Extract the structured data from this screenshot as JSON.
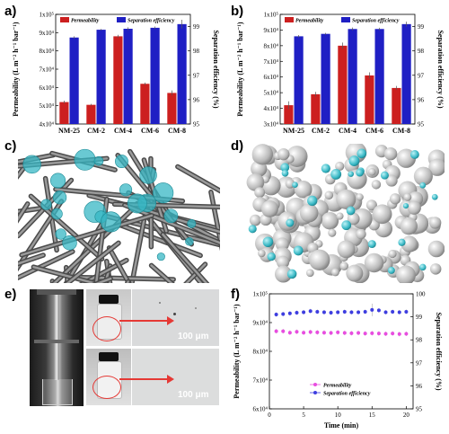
{
  "panels": {
    "a": "a)",
    "b": "b)",
    "c": "c)",
    "d": "d)",
    "e": "e)",
    "f": "f)"
  },
  "scale_bars": {
    "top": "100 μm",
    "bottom": "100 μm"
  },
  "colors": {
    "permeability": "#cc1f1f",
    "separation": "#1f1fc4",
    "fiber": "#6b6b6b",
    "particle": "#37b7c4",
    "f_perm": "#e84de0",
    "f_sep": "#3d3de0"
  },
  "icons": {
    "arrow_top": "red-arrow-icon",
    "arrow_bottom": "red-arrow-icon"
  },
  "chart_data": [
    {
      "id": "a",
      "type": "bar",
      "categories": [
        "NM-25",
        "CM-2",
        "CM-4",
        "CM-6",
        "CM-8"
      ],
      "series": [
        {
          "name": "Permeability",
          "axis": "left",
          "values": [
            52000,
            50500,
            88000,
            62000,
            57000
          ],
          "errors": [
            800,
            500,
            800,
            700,
            1400
          ]
        },
        {
          "name": "Separation efficiency",
          "axis": "right",
          "values": [
            98.55,
            98.87,
            98.91,
            98.95,
            99.1
          ],
          "errors": [
            0.05,
            0.03,
            0.06,
            0.05,
            0.18
          ]
        }
      ],
      "ylabel_left": "Permeability (L m⁻² h⁻¹ bar⁻¹)",
      "ylabel_right": "Separation efficiency (%)",
      "ylim_left": [
        40000,
        100000
      ],
      "ylim_right": [
        95,
        99.5
      ],
      "yticks_left": [
        "4x10⁴",
        "5x10⁴",
        "6x10⁴",
        "7x10⁴",
        "8x10⁴",
        "9x10⁴",
        "1x10⁵"
      ],
      "yticks_right": [
        "95",
        "96",
        "97",
        "98",
        "99"
      ],
      "legend_placement": "top"
    },
    {
      "id": "b",
      "type": "bar",
      "categories": [
        "NM-25",
        "CM-2",
        "CM-4",
        "CM-6",
        "CM-8"
      ],
      "series": [
        {
          "name": "Permeability",
          "axis": "left",
          "values": [
            42000,
            49000,
            80000,
            61000,
            53000
          ],
          "errors": [
            2500,
            1500,
            2000,
            2000,
            1300
          ]
        },
        {
          "name": "Separation efficiency",
          "axis": "right",
          "values": [
            98.6,
            98.7,
            98.9,
            98.9,
            99.1
          ],
          "errors": [
            0.05,
            0.04,
            0.06,
            0.05,
            0.1
          ]
        }
      ],
      "ylabel_left": "Permeability (L m⁻² h⁻¹ bar⁻¹)",
      "ylabel_right": "Separation efficiency (%)",
      "ylim_left": [
        30000,
        100000
      ],
      "ylim_right": [
        95,
        99.5
      ],
      "yticks_left": [
        "3x10⁴",
        "4x10⁴",
        "5x10⁴",
        "6x10⁴",
        "7x10⁴",
        "8x10⁴",
        "9x10⁴",
        "1x10⁵"
      ],
      "yticks_right": [
        "95",
        "96",
        "97",
        "98",
        "99"
      ],
      "legend_placement": "top"
    },
    {
      "id": "f",
      "type": "scatter",
      "x": [
        1,
        2,
        3,
        4,
        5,
        6,
        7,
        8,
        9,
        10,
        11,
        12,
        13,
        14,
        15,
        16,
        17,
        18,
        19,
        20
      ],
      "series": [
        {
          "name": "Permeability",
          "axis": "left",
          "values": [
            87000,
            87000,
            86500,
            86800,
            86500,
            86700,
            86600,
            86500,
            86400,
            86600,
            86400,
            86300,
            86400,
            86200,
            86300,
            86200,
            86100,
            86200,
            86000,
            86100
          ]
        },
        {
          "name": "Separation efficiency",
          "axis": "right",
          "values": [
            99.1,
            99.12,
            99.15,
            99.18,
            99.2,
            99.25,
            99.22,
            99.2,
            99.18,
            99.2,
            99.22,
            99.2,
            99.2,
            99.22,
            99.3,
            99.28,
            99.2,
            99.22,
            99.2,
            99.22
          ]
        }
      ],
      "xlabel": "Time (min)",
      "ylabel_left": "Permeability (L m⁻² h⁻¹ bar⁻¹)",
      "ylabel_right": "Separation efficiency (%)",
      "xlim": [
        0,
        21
      ],
      "xticks": [
        "0",
        "5",
        "10",
        "15",
        "20"
      ],
      "ylim_left": [
        60000,
        100000
      ],
      "ylim_right": [
        95,
        100
      ],
      "yticks_left": [
        "6x10⁴",
        "7x10⁴",
        "8x10⁴",
        "9x10⁴",
        "1x10⁵"
      ],
      "yticks_right": [
        "95",
        "96",
        "97",
        "98",
        "99",
        "100"
      ],
      "legend_placement": "bottom-center"
    }
  ]
}
